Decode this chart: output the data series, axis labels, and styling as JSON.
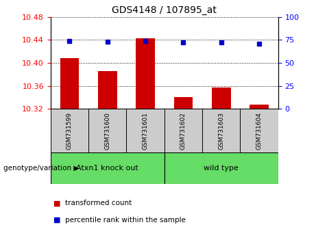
{
  "title": "GDS4148 / 107895_at",
  "samples": [
    "GSM731599",
    "GSM731600",
    "GSM731601",
    "GSM731602",
    "GSM731603",
    "GSM731604"
  ],
  "bar_values": [
    10.408,
    10.386,
    10.443,
    10.34,
    10.357,
    10.327
  ],
  "dot_values": [
    74,
    73,
    74,
    72,
    72,
    71
  ],
  "ylim_left": [
    10.32,
    10.48
  ],
  "ylim_right": [
    0,
    100
  ],
  "yticks_left": [
    10.32,
    10.36,
    10.4,
    10.44,
    10.48
  ],
  "yticks_right": [
    0,
    25,
    50,
    75,
    100
  ],
  "bar_color": "#CC0000",
  "dot_color": "#0000CC",
  "bar_width": 0.5,
  "groups": [
    {
      "label": "Atxn1 knock out",
      "indices": [
        0,
        1,
        2
      ],
      "color": "#66DD66"
    },
    {
      "label": "wild type",
      "indices": [
        3,
        4,
        5
      ],
      "color": "#66DD66"
    }
  ],
  "group_label": "genotype/variation",
  "legend_items": [
    {
      "label": "transformed count",
      "color": "#CC0000"
    },
    {
      "label": "percentile rank within the sample",
      "color": "#0000CC"
    }
  ],
  "sample_box_color": "#CCCCCC",
  "grid_color": "black",
  "grid_style": "dotted",
  "plot_bg_color": "white",
  "title_fontsize": 10,
  "tick_fontsize": 8,
  "label_fontsize": 8
}
